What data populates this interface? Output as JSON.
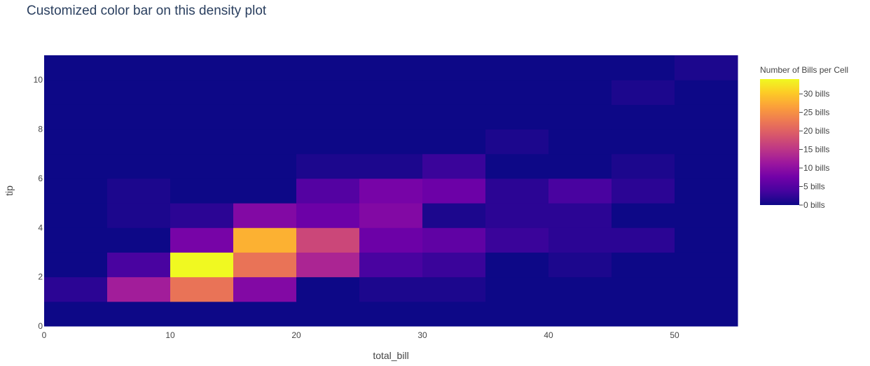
{
  "chart_data": {
    "type": "heatmap",
    "title": "Customized color bar on this density plot",
    "xlabel": "total_bill",
    "ylabel": "tip",
    "xlim": [
      0,
      55
    ],
    "ylim": [
      0,
      11
    ],
    "x_bin_size": 5,
    "y_bin_size": 1,
    "x_ticks": [
      0,
      10,
      20,
      30,
      40,
      50
    ],
    "y_ticks": [
      0,
      2,
      4,
      6,
      8,
      10
    ],
    "grid": false,
    "colorbar": {
      "title": "Number of Bills per Cell",
      "range": [
        0,
        34
      ],
      "tick_values": [
        0,
        5,
        10,
        15,
        20,
        25,
        30
      ],
      "tick_labels": [
        "0 bills",
        "5 bills",
        "10 bills",
        "15 bills",
        "20 bills",
        "25 bills",
        "30 bills"
      ],
      "colorscale": [
        "#0d0887",
        "#46039f",
        "#7201a8",
        "#9c179e",
        "#bd3786",
        "#d8576b",
        "#ed7953",
        "#fb9f3a",
        "#fdca26",
        "#f0f921"
      ]
    },
    "x_bin_starts": [
      0,
      5,
      10,
      15,
      20,
      25,
      30,
      35,
      40,
      45,
      50
    ],
    "y_bin_starts": [
      0,
      1,
      2,
      3,
      4,
      5,
      6,
      7,
      8,
      9,
      10
    ],
    "z": [
      [
        0,
        0,
        0,
        0,
        0,
        0,
        0,
        0,
        0,
        0,
        0
      ],
      [
        2,
        12,
        22,
        9,
        0,
        1,
        1,
        0,
        0,
        0,
        0
      ],
      [
        0,
        4,
        34,
        22,
        13,
        4,
        3,
        0,
        1,
        0,
        0
      ],
      [
        0,
        0,
        8,
        28,
        17,
        7,
        6,
        3,
        2,
        2,
        0
      ],
      [
        0,
        1,
        2,
        9,
        7,
        9,
        1,
        2,
        2,
        0,
        0
      ],
      [
        0,
        1,
        0,
        0,
        5,
        8,
        7,
        2,
        4,
        2,
        0
      ],
      [
        0,
        0,
        0,
        0,
        1,
        1,
        3,
        0,
        0,
        1,
        0
      ],
      [
        0,
        0,
        0,
        0,
        0,
        0,
        0,
        1,
        0,
        0,
        0
      ],
      [
        0,
        0,
        0,
        0,
        0,
        0,
        0,
        0,
        0,
        0,
        0
      ],
      [
        0,
        0,
        0,
        0,
        0,
        0,
        0,
        0,
        0,
        1,
        0
      ],
      [
        0,
        0,
        0,
        0,
        0,
        0,
        0,
        0,
        0,
        0,
        1
      ]
    ]
  }
}
